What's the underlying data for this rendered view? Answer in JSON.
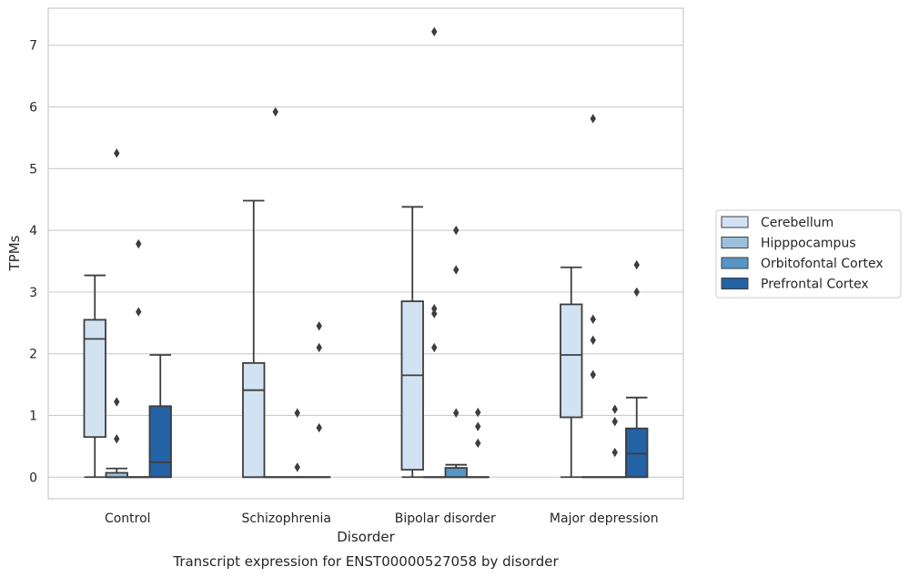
{
  "chart_data": {
    "type": "box",
    "title": "Transcript expression for ENST00000527058 by disorder",
    "xlabel": "Disorder",
    "ylabel": "TPMs",
    "ylim": [
      -0.35,
      7.6
    ],
    "yticks": [
      0,
      1,
      2,
      3,
      4,
      5,
      6,
      7
    ],
    "grid": true,
    "legend_position": "right",
    "categories": [
      "Control",
      "Schizophrenia",
      "Bipolar disorder",
      "Major depression"
    ],
    "series": [
      {
        "name": "Cerebellum",
        "color": "#d1e2f2",
        "boxes": [
          {
            "whisker_low": 0,
            "q1": 0.65,
            "median": 2.24,
            "q3": 2.55,
            "whisker_high": 3.27,
            "outliers": []
          },
          {
            "whisker_low": 0,
            "q1": 0,
            "median": 1.41,
            "q3": 1.85,
            "whisker_high": 4.48,
            "outliers": []
          },
          {
            "whisker_low": 0,
            "q1": 0.12,
            "median": 1.65,
            "q3": 2.85,
            "whisker_high": 4.38,
            "outliers": []
          },
          {
            "whisker_low": 0,
            "q1": 0.97,
            "median": 1.98,
            "q3": 2.8,
            "whisker_high": 3.4,
            "outliers": []
          }
        ]
      },
      {
        "name": "Hipppocampus",
        "color": "#9ac0de",
        "boxes": [
          {
            "whisker_low": 0,
            "q1": 0,
            "median": 0,
            "q3": 0.07,
            "whisker_high": 0.14,
            "outliers": [
              0.62,
              1.22,
              5.25
            ]
          },
          {
            "whisker_low": 0,
            "q1": 0,
            "median": 0,
            "q3": 0,
            "whisker_high": 0,
            "outliers": [
              5.92
            ]
          },
          {
            "whisker_low": 0,
            "q1": 0,
            "median": 0,
            "q3": 0,
            "whisker_high": 0,
            "outliers": [
              2.1,
              2.65,
              2.73,
              7.22
            ]
          },
          {
            "whisker_low": 0,
            "q1": 0,
            "median": 0,
            "q3": 0,
            "whisker_high": 0,
            "outliers": [
              1.66,
              2.22,
              2.56,
              5.81
            ]
          }
        ]
      },
      {
        "name": "Orbitofontal Cortex",
        "color": "#5596c7",
        "boxes": [
          {
            "whisker_low": 0,
            "q1": 0,
            "median": 0,
            "q3": 0,
            "whisker_high": 0,
            "outliers": [
              2.68,
              3.78
            ]
          },
          {
            "whisker_low": 0,
            "q1": 0,
            "median": 0,
            "q3": 0,
            "whisker_high": 0,
            "outliers": [
              0.16,
              1.04
            ]
          },
          {
            "whisker_low": 0,
            "q1": 0,
            "median": 0,
            "q3": 0.15,
            "whisker_high": 0.2,
            "outliers": [
              1.04,
              3.36,
              4.0
            ]
          },
          {
            "whisker_low": 0,
            "q1": 0,
            "median": 0,
            "q3": 0,
            "whisker_high": 0,
            "outliers": [
              0.4,
              0.9,
              1.1
            ]
          }
        ]
      },
      {
        "name": "Prefrontal Cortex",
        "color": "#2462a6",
        "boxes": [
          {
            "whisker_low": 0,
            "q1": 0,
            "median": 0.24,
            "q3": 1.15,
            "whisker_high": 1.98,
            "outliers": []
          },
          {
            "whisker_low": 0,
            "q1": 0,
            "median": 0,
            "q3": 0,
            "whisker_high": 0,
            "outliers": [
              0.8,
              2.1,
              2.45
            ]
          },
          {
            "whisker_low": 0,
            "q1": 0,
            "median": 0,
            "q3": 0,
            "whisker_high": 0,
            "outliers": [
              0.55,
              0.82,
              1.05
            ]
          },
          {
            "whisker_low": 0,
            "q1": 0,
            "median": 0.38,
            "q3": 0.79,
            "whisker_high": 1.29,
            "outliers": [
              3.0,
              3.44
            ]
          }
        ]
      }
    ]
  }
}
